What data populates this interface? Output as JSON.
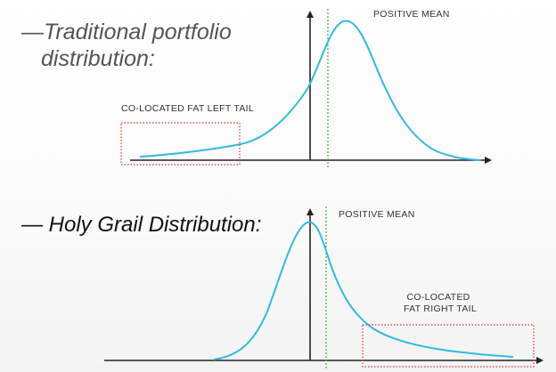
{
  "top_panel": {
    "heading_prefix": "—",
    "heading_line1": "Traditional portfolio",
    "heading_line2": "distribution:",
    "mean_label": "POSITIVE MEAN",
    "tail_label": "CO-LOCATED FAT LEFT TAIL"
  },
  "bottom_panel": {
    "heading": "— Holy Grail Distribution:",
    "mean_label": "POSITIVE MEAN",
    "tail_label_line1": "CO-LOCATED",
    "tail_label_line2": "FAT RIGHT TAIL"
  },
  "colors": {
    "curve": "#33b9e0",
    "axis": "#222222",
    "mean_line": "#4caf50",
    "tail_box": "#d9534f"
  }
}
